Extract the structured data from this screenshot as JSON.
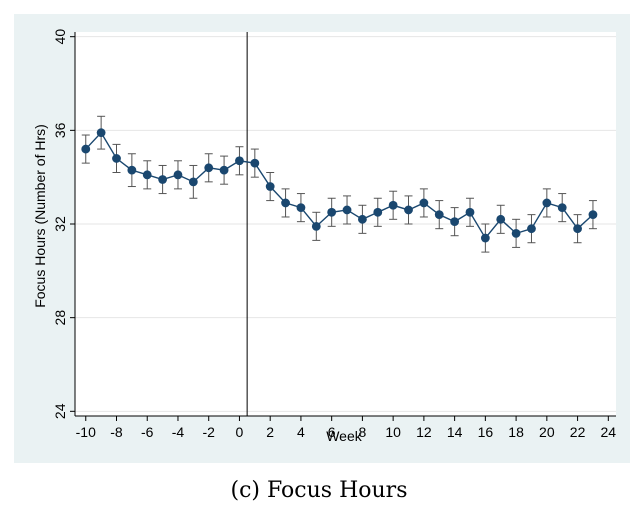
{
  "caption": "(c) Focus Hours",
  "colors": {
    "background": "#eaf2f3",
    "plot_area": "#ffffff",
    "series": "#1a476f",
    "error_bar": "#555555",
    "grid": "#e6e6e6"
  },
  "chart_data": {
    "type": "line",
    "title": "",
    "xlabel": "Week",
    "ylabel": "Focus Hours (Number of Hrs)",
    "xlim": [
      -10.7,
      24.5
    ],
    "ylim": [
      23.8,
      40.2
    ],
    "xticks": [
      -10,
      -8,
      -6,
      -4,
      -2,
      0,
      2,
      4,
      6,
      8,
      10,
      12,
      14,
      16,
      18,
      20,
      22,
      24
    ],
    "yticks": [
      24,
      28,
      32,
      36,
      40
    ],
    "grid": true,
    "event_line_x": 0.5,
    "series": [
      {
        "name": "Focus Hours",
        "x": [
          -10,
          -9,
          -8,
          -7,
          -6,
          -5,
          -4,
          -3,
          -2,
          -1,
          0,
          1,
          2,
          3,
          4,
          5,
          6,
          7,
          8,
          9,
          10,
          11,
          12,
          13,
          14,
          15,
          16,
          17,
          18,
          19,
          20,
          21,
          22,
          23
        ],
        "y": [
          35.2,
          35.9,
          34.8,
          34.3,
          34.1,
          33.9,
          34.1,
          33.8,
          34.4,
          34.3,
          34.7,
          34.6,
          33.6,
          32.9,
          32.7,
          31.9,
          32.5,
          32.6,
          32.2,
          32.5,
          32.8,
          32.6,
          32.9,
          32.4,
          32.1,
          32.5,
          31.4,
          32.2,
          31.6,
          31.8,
          32.9,
          32.7,
          31.8,
          32.4
        ],
        "ci_low": [
          34.6,
          35.2,
          34.2,
          33.6,
          33.5,
          33.3,
          33.5,
          33.1,
          33.8,
          33.7,
          34.1,
          34.0,
          33.0,
          32.3,
          32.1,
          31.3,
          31.9,
          32.0,
          31.6,
          31.9,
          32.2,
          32.0,
          32.3,
          31.8,
          31.5,
          31.9,
          30.8,
          31.6,
          31.0,
          31.2,
          32.3,
          32.1,
          31.2,
          31.8
        ],
        "ci_high": [
          35.8,
          36.6,
          35.4,
          35.0,
          34.7,
          34.5,
          34.7,
          34.5,
          35.0,
          34.9,
          35.3,
          35.2,
          34.2,
          33.5,
          33.3,
          32.5,
          33.1,
          33.2,
          32.8,
          33.1,
          33.4,
          33.2,
          33.5,
          33.0,
          32.7,
          33.1,
          32.0,
          32.8,
          32.2,
          32.4,
          33.5,
          33.3,
          32.4,
          33.0
        ]
      }
    ]
  }
}
